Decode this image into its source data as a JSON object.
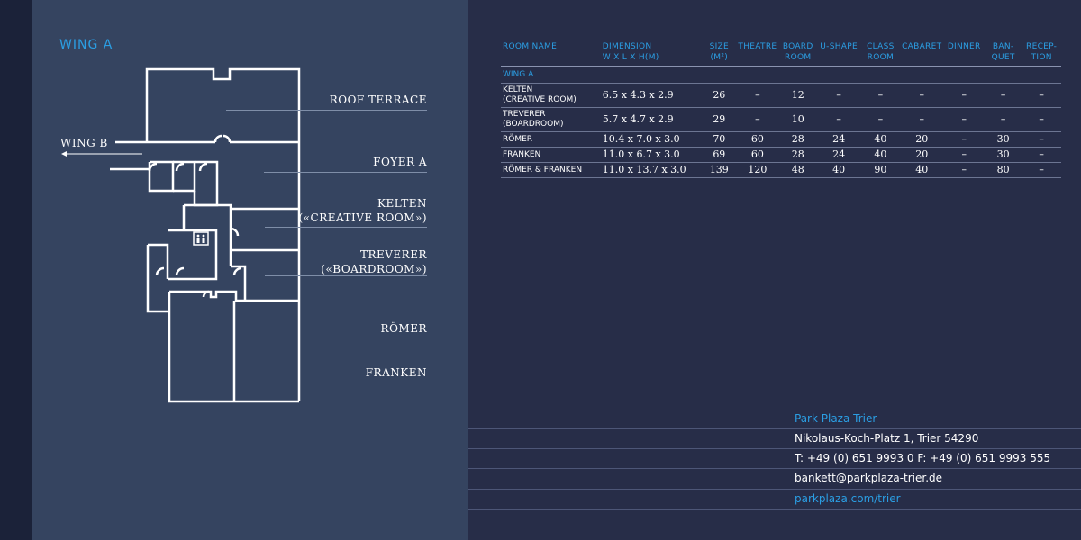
{
  "floorplan": {
    "title": "WING A",
    "wing_b_label": "WING B",
    "labels": {
      "roof_terrace": "ROOF TERRACE",
      "foyer_a": "FOYER A",
      "kelten_1": "KELTEN",
      "kelten_2": "(«CREATIVE ROOM»)",
      "treverer_1": "TREVERER",
      "treverer_2": "(«BOARDROOM»)",
      "roemer": "RÖMER",
      "franken": "FRANKEN"
    }
  },
  "table": {
    "headers": {
      "room_name": "ROOM NAME",
      "dim_1": "DIMENSION",
      "dim_2": "W X L X H(M)",
      "size_1": "SIZE",
      "size_2": "(M²)",
      "theatre": "THEATRE",
      "board_1": "BOARD",
      "board_2": "ROOM",
      "ushape": "U-SHAPE",
      "class_1": "CLASS",
      "class_2": "ROOM",
      "cabaret": "CABARET",
      "dinner": "DINNER",
      "banquet_1": "BAN-",
      "banquet_2": "QUET",
      "reception_1": "RECEP-",
      "reception_2": "TION"
    },
    "section": "WING A",
    "rows": [
      {
        "name_1": "KELTEN",
        "name_2": "(CREATIVE ROOM)",
        "dimension": "6.5 x 4.3 x 2.9",
        "size": "26",
        "theatre": "–",
        "board": "12",
        "ushape": "–",
        "class": "–",
        "cabaret": "–",
        "dinner": "–",
        "banquet": "–",
        "reception": "–"
      },
      {
        "name_1": "TREVERER",
        "name_2": "(BOARDROOM)",
        "dimension": "5.7 x 4.7 x 2.9",
        "size": "29",
        "theatre": "–",
        "board": "10",
        "ushape": "–",
        "class": "–",
        "cabaret": "–",
        "dinner": "–",
        "banquet": "–",
        "reception": "–"
      },
      {
        "name_1": "RÖMER",
        "name_2": "",
        "dimension": "10.4 x 7.0 x 3.0",
        "size": "70",
        "theatre": "60",
        "board": "28",
        "ushape": "24",
        "class": "40",
        "cabaret": "20",
        "dinner": "–",
        "banquet": "30",
        "reception": "–"
      },
      {
        "name_1": "FRANKEN",
        "name_2": "",
        "dimension": "11.0 x 6.7 x 3.0",
        "size": "69",
        "theatre": "60",
        "board": "28",
        "ushape": "24",
        "class": "40",
        "cabaret": "20",
        "dinner": "–",
        "banquet": "30",
        "reception": "–"
      },
      {
        "name_1": "RÖMER & FRANKEN",
        "name_2": "",
        "dimension": "11.0 x 13.7 x 3.0",
        "size": "139",
        "theatre": "120",
        "board": "48",
        "ushape": "40",
        "class": "90",
        "cabaret": "40",
        "dinner": "–",
        "banquet": "80",
        "reception": "–"
      }
    ]
  },
  "contact": {
    "name": "Park Plaza Trier",
    "address": "Nikolaus-Koch-Platz 1, Trier 54290",
    "phone": "T: +49 (0) 651 9993 0  F: +49 (0) 651 9993 555",
    "email": "bankett@parkplaza-trier.de",
    "website": "parkplaza.com/trier"
  },
  "colors": {
    "accent": "#2b9ee3",
    "left_panel": "#354460",
    "right_panel": "#272d48",
    "spine": "#1b2239"
  }
}
